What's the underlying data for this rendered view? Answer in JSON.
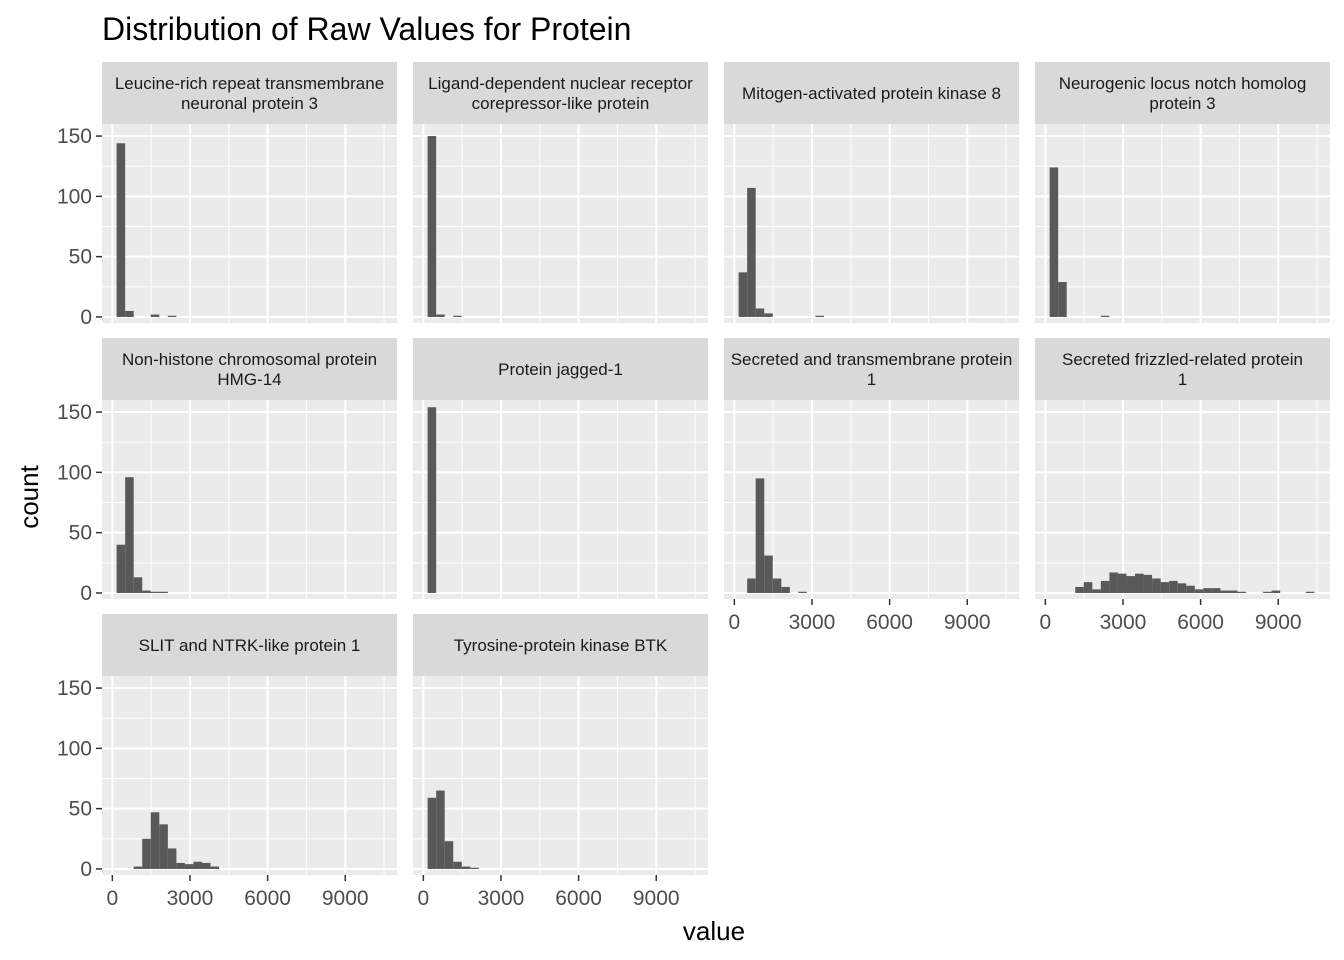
{
  "chart_data": {
    "type": "bar",
    "subtype": "faceted-histogram",
    "title": "Distribution of Raw Values for Protein",
    "xlabel": "value",
    "ylabel": "count",
    "xlim": [
      -400,
      11000
    ],
    "ylim": [
      -5,
      160
    ],
    "x_ticks": [
      0,
      3000,
      6000,
      9000
    ],
    "x_tick_labels": [
      "0",
      "3000",
      "6000",
      "9000"
    ],
    "y_ticks": [
      0,
      50,
      100,
      150
    ],
    "y_tick_labels": [
      "0",
      "50",
      "100",
      "150"
    ],
    "bin_width": 330,
    "grid": true,
    "bar_color": "#595959",
    "panel_background": "#ebebeb",
    "strip_background": "#d9d9d9",
    "grid_color": "#ffffff",
    "facets": [
      {
        "name": "Leucine-rich repeat transmembrane neuronal protein 3",
        "label_lines": [
          "Leucine-rich repeat transmembrane",
          "neuronal protein 3"
        ],
        "bins": [
          [
            330,
            144
          ],
          [
            660,
            5
          ],
          [
            1650,
            2
          ],
          [
            2310,
            1
          ]
        ]
      },
      {
        "name": "Ligand-dependent nuclear receptor corepressor-like protein",
        "label_lines": [
          "Ligand-dependent nuclear receptor",
          "corepressor-like protein"
        ],
        "bins": [
          [
            330,
            150
          ],
          [
            660,
            2
          ],
          [
            1320,
            1
          ]
        ]
      },
      {
        "name": "Mitogen-activated protein kinase 8",
        "label_lines": [
          "Mitogen-activated protein kinase 8"
        ],
        "bins": [
          [
            330,
            37
          ],
          [
            660,
            107
          ],
          [
            990,
            7
          ],
          [
            1320,
            3
          ],
          [
            3300,
            1
          ]
        ]
      },
      {
        "name": "Neurogenic locus notch homolog protein 3",
        "label_lines": [
          "Neurogenic locus notch homolog",
          "protein 3"
        ],
        "bins": [
          [
            330,
            124
          ],
          [
            660,
            29
          ],
          [
            2310,
            1
          ]
        ]
      },
      {
        "name": "Non-histone chromosomal protein HMG-14",
        "label_lines": [
          "Non-histone chromosomal protein",
          "HMG-14"
        ],
        "bins": [
          [
            330,
            40
          ],
          [
            660,
            96
          ],
          [
            990,
            13
          ],
          [
            1320,
            2
          ],
          [
            1650,
            1
          ],
          [
            1980,
            1
          ]
        ]
      },
      {
        "name": "Protein jagged-1",
        "label_lines": [
          "Protein jagged-1"
        ],
        "bins": [
          [
            330,
            154
          ]
        ]
      },
      {
        "name": "Secreted and transmembrane protein 1",
        "label_lines": [
          "Secreted and transmembrane protein",
          "1"
        ],
        "bins": [
          [
            660,
            12
          ],
          [
            990,
            95
          ],
          [
            1320,
            31
          ],
          [
            1650,
            12
          ],
          [
            1980,
            5
          ],
          [
            2640,
            1
          ]
        ]
      },
      {
        "name": "Secreted frizzled-related protein 1",
        "label_lines": [
          "Secreted frizzled-related protein",
          "1"
        ],
        "bins": [
          [
            1320,
            5
          ],
          [
            1650,
            9
          ],
          [
            1980,
            3
          ],
          [
            2310,
            10
          ],
          [
            2640,
            17
          ],
          [
            2970,
            16
          ],
          [
            3300,
            14
          ],
          [
            3630,
            16
          ],
          [
            3960,
            15
          ],
          [
            4290,
            12
          ],
          [
            4620,
            9
          ],
          [
            4950,
            10
          ],
          [
            5280,
            8
          ],
          [
            5610,
            6
          ],
          [
            5940,
            3
          ],
          [
            6270,
            4
          ],
          [
            6600,
            4
          ],
          [
            6930,
            2
          ],
          [
            7260,
            2
          ],
          [
            7590,
            1
          ],
          [
            8580,
            1
          ],
          [
            8910,
            2
          ],
          [
            10230,
            1
          ]
        ]
      },
      {
        "name": "SLIT and NTRK-like protein 1",
        "label_lines": [
          "SLIT and NTRK-like protein 1"
        ],
        "bins": [
          [
            990,
            2
          ],
          [
            1320,
            25
          ],
          [
            1650,
            47
          ],
          [
            1980,
            37
          ],
          [
            2310,
            17
          ],
          [
            2640,
            5
          ],
          [
            2970,
            4
          ],
          [
            3300,
            6
          ],
          [
            3630,
            5
          ],
          [
            3960,
            2
          ]
        ]
      },
      {
        "name": "Tyrosine-protein kinase BTK",
        "label_lines": [
          "Tyrosine-protein kinase BTK"
        ],
        "bins": [
          [
            330,
            59
          ],
          [
            660,
            65
          ],
          [
            990,
            23
          ],
          [
            1320,
            6
          ],
          [
            1650,
            2
          ],
          [
            1980,
            1
          ]
        ]
      }
    ]
  }
}
